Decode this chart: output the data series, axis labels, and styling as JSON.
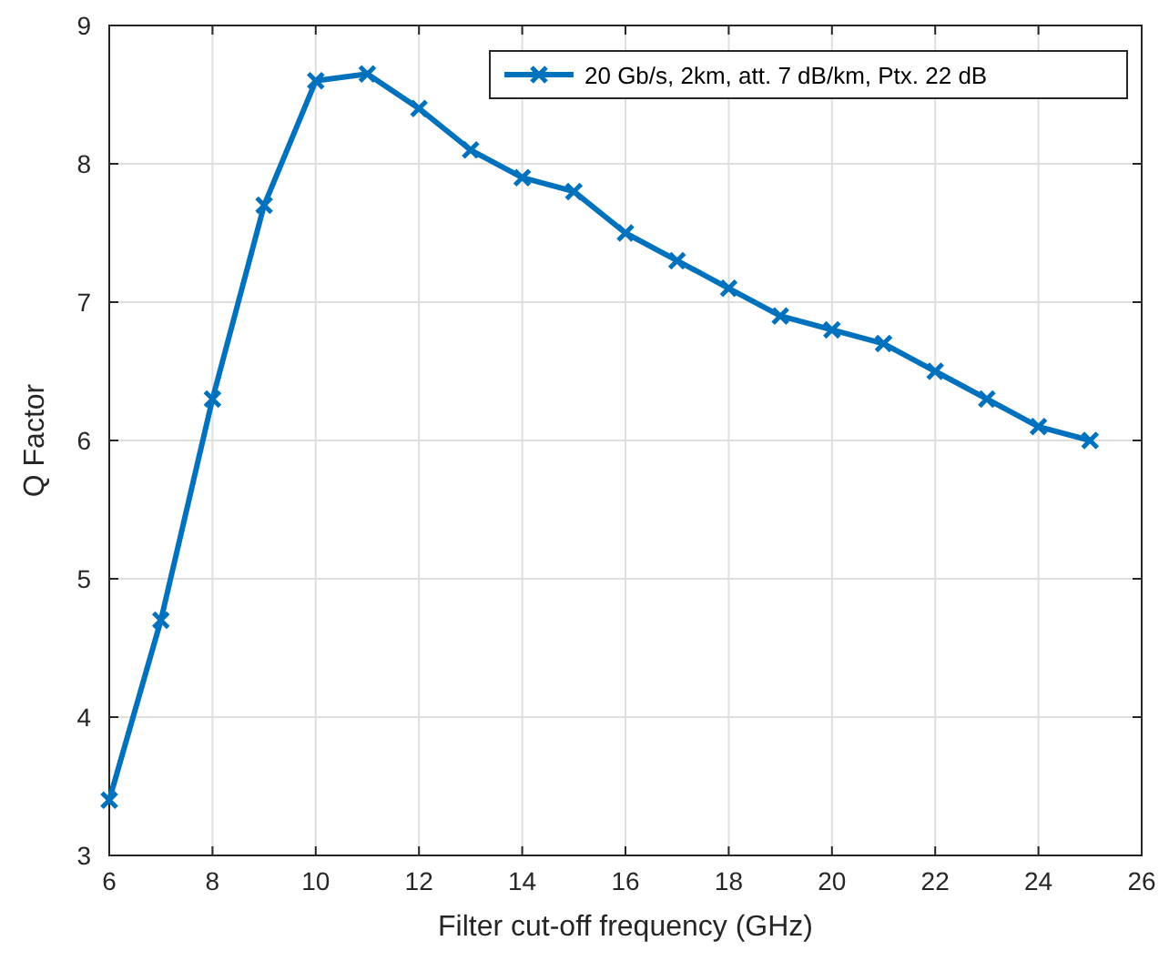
{
  "chart_data": {
    "type": "line",
    "xlabel": "Filter cut-off frequency (GHz)",
    "ylabel": "Q Factor",
    "x": [
      6,
      7,
      8,
      9,
      10,
      11,
      12,
      13,
      14,
      15,
      16,
      17,
      18,
      19,
      20,
      21,
      22,
      23,
      24,
      25
    ],
    "series": [
      {
        "name": "20 Gb/s, 2km, att. 7 dB/km, Ptx. 22 dB",
        "color": "#0072bd",
        "values": [
          3.4,
          4.7,
          6.3,
          7.7,
          8.6,
          8.65,
          8.4,
          8.1,
          7.9,
          7.8,
          7.5,
          7.3,
          7.1,
          6.9,
          6.8,
          6.7,
          6.5,
          6.3,
          6.1,
          6.0
        ]
      }
    ],
    "xlim": [
      6,
      26
    ],
    "xticks": [
      6,
      8,
      10,
      12,
      14,
      16,
      18,
      20,
      22,
      24,
      26
    ],
    "ylim": [
      3,
      9
    ],
    "yticks": [
      3,
      4,
      5,
      6,
      7,
      8,
      9
    ],
    "grid": true,
    "legend": "top right",
    "marker": "cross",
    "line_style": "solid"
  }
}
